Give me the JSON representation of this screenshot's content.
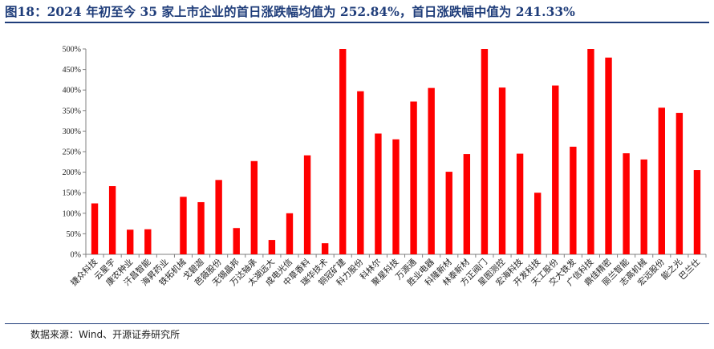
{
  "title": "图18：2024 年初至今 35 家上市企业的首日涨跌幅均值为 252.84%，首日涨跌幅中值为 241.33%",
  "source": "数据来源：Wind、开源证券研究所",
  "colors": {
    "bar": "#ff0000",
    "title": "#1f3d7a",
    "axis": "#808080"
  },
  "chart_data": {
    "type": "bar",
    "title": "",
    "xlabel": "",
    "ylabel": "",
    "ylim": [
      0,
      500
    ],
    "yticks": [
      0,
      50,
      100,
      150,
      200,
      250,
      300,
      350,
      400,
      450,
      500
    ],
    "ytick_labels": [
      "0%",
      "50%",
      "100%",
      "150%",
      "200%",
      "250%",
      "300%",
      "350%",
      "400%",
      "450%",
      "500%"
    ],
    "grid": false,
    "legend": "none",
    "categories": [
      "捷众科技",
      "云星宇",
      "康农种业",
      "汗昌智能",
      "海昇药业",
      "铁拓机械",
      "戈碧迦",
      "芭薇股份",
      "无锡晶邦",
      "万达轴承",
      "太湖远大",
      "成电光信",
      "中草香料",
      "瑞华技术",
      "铜冠矿建",
      "科力股份",
      "科林尔",
      "聚星科技",
      "万源通",
      "胜业电器",
      "科隆新材",
      "林泰新材",
      "方正阀门",
      "星图测控",
      "宏海科技",
      "开发科技",
      "天工股份",
      "交大铁发",
      "广信科技",
      "鼎佳精密",
      "丽兰智能",
      "志高机械",
      "宏远股份",
      "能之光",
      "巴兰仕"
    ],
    "values": [
      124,
      166,
      60,
      61,
      0,
      140,
      127,
      181,
      64,
      227,
      35,
      100,
      241,
      27,
      500,
      397,
      294,
      280,
      372,
      405,
      201,
      244,
      500,
      406,
      245,
      150,
      411,
      262,
      500,
      479,
      246,
      231,
      357,
      344,
      205
    ]
  }
}
